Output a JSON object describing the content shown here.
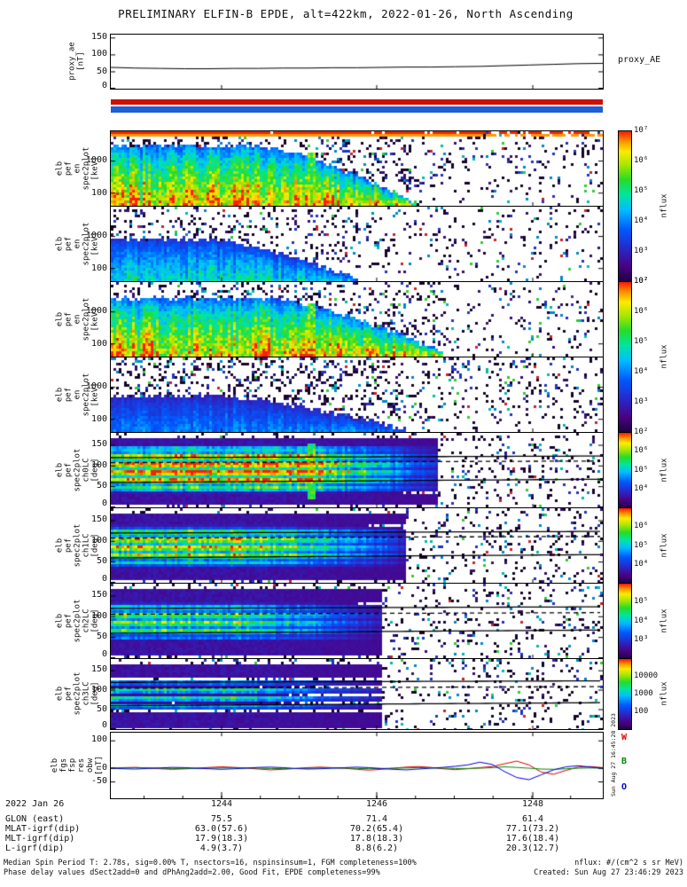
{
  "title": "PRELIMINARY ELFIN-B EPDE, alt=422km, 2022-01-26, North Ascending",
  "proxy": {
    "ylabel": "proxy_ae\n[nT]",
    "right_label": "proxy_AE",
    "yticks": [
      "150",
      "100",
      "50",
      "0"
    ]
  },
  "status_bars": {
    "red": "#cc1100",
    "blue": "#1c5fd6"
  },
  "panels": [
    {
      "ylabel": "elb\npef\nen\nspec2plot\n[keV]",
      "yticks": [
        "1000",
        "100"
      ]
    },
    {
      "ylabel": "elb\npef\nen\nspec2plot\n[keV]",
      "yticks": [
        "1000",
        "100"
      ]
    },
    {
      "ylabel": "elb\npef\nen\nspec2plot\n[keV]",
      "yticks": [
        "1000",
        "100"
      ]
    },
    {
      "ylabel": "elb\npef\nen\nspec2plot\n[keV]",
      "yticks": [
        "1000",
        "100"
      ]
    },
    {
      "ylabel": "elb\npef\nspec2plot\nch0LC\n[deg]",
      "yticks": [
        "150",
        "100",
        "50",
        "0"
      ]
    },
    {
      "ylabel": "elb\npef\nspec2plot\nch1LC\n[deg]",
      "yticks": [
        "150",
        "100",
        "50",
        "0"
      ]
    },
    {
      "ylabel": "elb\npef\nspec2plot\nch2LC\n[deg]",
      "yticks": [
        "150",
        "100",
        "50",
        "0"
      ]
    },
    {
      "ylabel": "elb\npef\nspec2plot\nch3LC\n[deg]",
      "yticks": [
        "150",
        "100",
        "50",
        "0"
      ]
    }
  ],
  "colorbars": [
    {
      "ticks": [
        "10⁷",
        "10⁶",
        "10⁵",
        "10⁴",
        "10³",
        "10²"
      ],
      "label": "nflux"
    },
    {
      "ticks": [
        "10⁷",
        "10⁶",
        "10⁵",
        "10⁴",
        "10³",
        "10²"
      ],
      "label": "nflux"
    },
    {
      "ticks": [
        "10⁶",
        "10⁵",
        "10⁴"
      ],
      "label": "nflux"
    },
    {
      "ticks": [
        "10⁶",
        "10⁵",
        "10⁴"
      ],
      "label": "nflux"
    },
    {
      "ticks": [
        "10⁵",
        "10⁴",
        "10³"
      ],
      "label": "nflux"
    },
    {
      "ticks": [
        "10000",
        "1000",
        "100"
      ],
      "label": "nflux"
    }
  ],
  "line_panel": {
    "ylabel": "elb\nfgs\nfsp\nres\nobw\n[nT]",
    "yticks": [
      "100",
      "0",
      "-50"
    ],
    "legend": [
      {
        "name": "W",
        "color": "#dd0000"
      },
      {
        "name": "B",
        "color": "#008800"
      },
      {
        "name": "O",
        "color": "#0000dd"
      }
    ]
  },
  "xaxis": {
    "date": "2022 Jan 26",
    "ticks": [
      "1244",
      "1246",
      "1248"
    ]
  },
  "ephemeris": [
    {
      "label": "GLON (east)",
      "values": [
        "75.5",
        "71.4",
        "61.4"
      ]
    },
    {
      "label": "MLAT-igrf(dip)",
      "values": [
        "63.0(57.6)",
        "70.2(65.4)",
        "77.1(73.2)"
      ]
    },
    {
      "label": "MLT-igrf(dip)",
      "values": [
        "17.9(18.3)",
        "17.8(18.3)",
        "17.6(18.4)"
      ]
    },
    {
      "label": "L-igrf(dip)",
      "values": [
        "4.9(3.7)",
        "8.8(6.2)",
        "20.3(12.7)"
      ]
    }
  ],
  "footer": {
    "left1": "Median Spin Period T: 2.78s, sig=0.00% T, nsectors=16, nspinsinsum=1, FGM completeness=100%",
    "left2": "Phase delay values dSect2add=0 and dPhAng2add=2.00, Good Fit, EPDE completeness=99%",
    "right1": "nflux: #/(cm^2 s sr MeV)",
    "right2": "Created: Sun Aug 27 23:46:29 2023"
  },
  "side_timestamp": "Sun Aug 27 16:45:28 2023",
  "chart_data": {
    "x_axis": {
      "tick_labels_hhmm": [
        "1244",
        "1246",
        "1248"
      ],
      "approx_range_hhmm": [
        "1242.6",
        "1248.9"
      ],
      "date": "2022-01-26"
    },
    "proxy_AE": {
      "type": "line",
      "title": "proxy_AE",
      "ylabel": "proxy_ae [nT]",
      "ylim": [
        0,
        160
      ],
      "x": "uniform fractions 0..1 across time axis",
      "values": [
        63,
        61,
        60,
        59,
        59,
        60,
        60,
        61,
        61,
        62,
        62,
        63,
        64,
        64,
        65,
        66,
        68,
        70,
        72,
        74,
        75
      ]
    },
    "spectrograms": [
      {
        "type": "heatmap",
        "name": "elb pef en spec2plot [keV] (ch A)",
        "yscale": "log",
        "ylim_keV": [
          60,
          7000
        ],
        "flux_lim": [
          100,
          10000000
        ],
        "model": {
          "fb0": 0.18,
          "t_plateau": 0.3,
          "t_end": 0.62,
          "amp": 0.95,
          "speckle": 0.13,
          "streak": 0.405,
          "strips": true,
          "seed": 11
        }
      },
      {
        "type": "heatmap",
        "name": "elb pef en spec2plot [keV] (ch B)",
        "yscale": "log",
        "ylim_keV": [
          60,
          7000
        ],
        "flux_lim": [
          100,
          10000000
        ],
        "model": {
          "fb0": 0.42,
          "t_plateau": 0.2,
          "t_end": 0.5,
          "amp": 0.52,
          "speckle": 0.1,
          "seed": 22
        }
      },
      {
        "type": "heatmap",
        "name": "elb pef en spec2plot [keV] (ch C)",
        "yscale": "log",
        "ylim_keV": [
          60,
          7000
        ],
        "flux_lim": [
          100,
          10000000
        ],
        "model": {
          "fb0": 0.2,
          "t_plateau": 0.32,
          "t_end": 0.68,
          "amp": 0.92,
          "speckle": 0.12,
          "streak": 0.405,
          "seed": 33
        }
      },
      {
        "type": "heatmap",
        "name": "elb pef en spec2plot [keV] (ch D)",
        "yscale": "log",
        "ylim_keV": [
          60,
          7000
        ],
        "flux_lim": [
          100,
          10000000
        ],
        "model": {
          "fb0": 0.5,
          "t_plateau": 0.22,
          "t_end": 0.6,
          "amp": 0.36,
          "speckle": 0.16,
          "seed": 44
        }
      },
      {
        "type": "heatmap",
        "name": "elb pef spec2plot ch0LC [deg]",
        "ylim_deg": [
          0,
          180
        ],
        "model": {
          "center": 95,
          "hw": 58,
          "amp": 0.97,
          "t_plateau": 0.38,
          "t_end": 0.66,
          "speckle": 0.12,
          "solid": [
            60,
            120
          ],
          "dashed": 108,
          "streak": 0.405,
          "seed": 55
        }
      },
      {
        "type": "heatmap",
        "name": "elb pef spec2plot ch1LC [deg]",
        "ylim_deg": [
          0,
          180
        ],
        "model": {
          "center": 92,
          "hw": 50,
          "amp": 0.85,
          "t_plateau": 0.3,
          "t_end": 0.6,
          "speckle": 0.12,
          "solid": [
            60,
            120
          ],
          "dashed": 108,
          "seed": 66
        }
      },
      {
        "type": "heatmap",
        "name": "elb pef spec2plot ch2LC [deg]",
        "ylim_deg": [
          0,
          180
        ],
        "model": {
          "center": 92,
          "hw": 46,
          "amp": 0.68,
          "t_plateau": 0.28,
          "t_end": 0.55,
          "speckle": 0.12,
          "solid": [
            60,
            120
          ],
          "dashed": 106,
          "seed": 77
        }
      },
      {
        "type": "heatmap",
        "name": "elb pef spec2plot ch3LC [deg]",
        "ylim_deg": [
          0,
          180
        ],
        "model": {
          "center": 90,
          "hw": 44,
          "amp": 0.52,
          "t_plateau": 0.25,
          "t_end": 0.55,
          "speckle": 0.12,
          "stripe": 0.6,
          "solid": [
            60,
            120
          ],
          "dashed": 105,
          "seed": 88
        }
      }
    ],
    "obw": {
      "type": "line",
      "title": "elb fgs fsp res obw [nT]",
      "ylim": [
        -110,
        130
      ],
      "x": "uniform fractions 0..1 across time axis",
      "series": [
        {
          "name": "W",
          "values": [
            0,
            2,
            3,
            1,
            -2,
            -4,
            -2,
            0,
            3,
            5,
            3,
            1,
            -3,
            -6,
            -4,
            -1,
            2,
            4,
            2,
            0,
            -4,
            -7,
            -4,
            0,
            4,
            6,
            3,
            -2,
            -5,
            -2,
            2,
            6,
            16,
            26,
            12,
            -14,
            -22,
            -8,
            4,
            6,
            2
          ]
        },
        {
          "name": "B",
          "values": [
            0,
            1,
            2,
            1,
            0,
            -1,
            -2,
            -1,
            0,
            1,
            2,
            1,
            0,
            -1,
            -2,
            -1,
            0,
            1,
            1,
            0,
            -1,
            -2,
            -1,
            0,
            1,
            2,
            1,
            0,
            -1,
            -1,
            0,
            2,
            5,
            3,
            0,
            -3,
            -4,
            -2,
            0,
            1,
            0
          ]
        },
        {
          "name": "O",
          "values": [
            0,
            -2,
            -3,
            -1,
            1,
            3,
            2,
            0,
            -2,
            -4,
            -2,
            0,
            3,
            4,
            2,
            -1,
            -3,
            -2,
            0,
            2,
            4,
            2,
            -1,
            -4,
            -6,
            -3,
            0,
            3,
            7,
            12,
            22,
            14,
            -12,
            -34,
            -42,
            -24,
            -6,
            5,
            9,
            4,
            0
          ]
        }
      ]
    }
  }
}
